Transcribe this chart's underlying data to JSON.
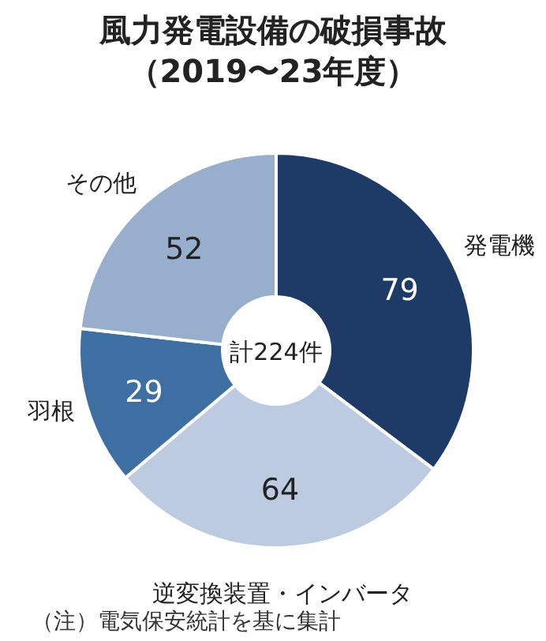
{
  "chart_data": {
    "type": "donut",
    "title": "風力発電設備の破損事故",
    "subtitle": "（2019〜23年度）",
    "categories": [
      "発電機",
      "逆変換装置・インバータ",
      "羽根",
      "その他"
    ],
    "values": [
      79,
      64,
      29,
      52
    ],
    "colors": [
      "#1e3a66",
      "#bccbe0",
      "#3d6fa3",
      "#97aecd"
    ],
    "data_labels": true,
    "annotations": [
      "計224件",
      "（注）電気保安統計を基に集計"
    ]
  }
}
